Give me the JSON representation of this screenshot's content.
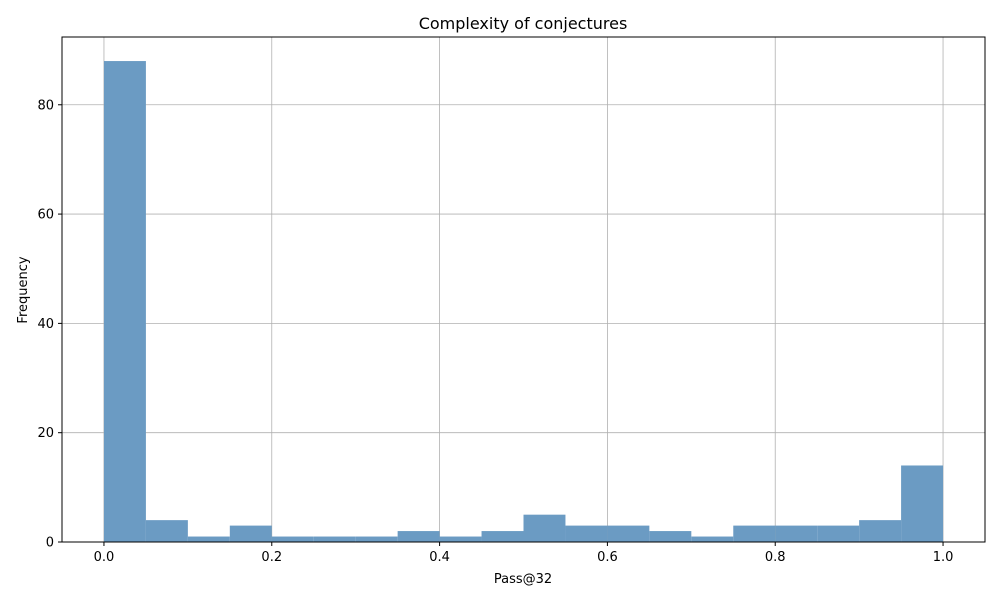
{
  "chart_data": {
    "type": "bar",
    "title": "Complexity of conjectures",
    "xlabel": "Pass@32",
    "ylabel": "Frequency",
    "xlim": [
      -0.05,
      1.05
    ],
    "ylim": [
      0,
      92.4
    ],
    "grid": true,
    "bar_color": "#6b9bc3",
    "bins": [
      {
        "x0": 0.0,
        "x1": 0.05,
        "count": 88
      },
      {
        "x0": 0.05,
        "x1": 0.1,
        "count": 4
      },
      {
        "x0": 0.1,
        "x1": 0.15,
        "count": 1
      },
      {
        "x0": 0.15,
        "x1": 0.2,
        "count": 3
      },
      {
        "x0": 0.2,
        "x1": 0.25,
        "count": 1
      },
      {
        "x0": 0.25,
        "x1": 0.3,
        "count": 1
      },
      {
        "x0": 0.3,
        "x1": 0.35,
        "count": 1
      },
      {
        "x0": 0.35,
        "x1": 0.4,
        "count": 2
      },
      {
        "x0": 0.4,
        "x1": 0.45,
        "count": 1
      },
      {
        "x0": 0.45,
        "x1": 0.5,
        "count": 2
      },
      {
        "x0": 0.5,
        "x1": 0.55,
        "count": 5
      },
      {
        "x0": 0.55,
        "x1": 0.6,
        "count": 3
      },
      {
        "x0": 0.6,
        "x1": 0.65,
        "count": 3
      },
      {
        "x0": 0.65,
        "x1": 0.7,
        "count": 2
      },
      {
        "x0": 0.7,
        "x1": 0.75,
        "count": 1
      },
      {
        "x0": 0.75,
        "x1": 0.8,
        "count": 3
      },
      {
        "x0": 0.8,
        "x1": 0.85,
        "count": 3
      },
      {
        "x0": 0.85,
        "x1": 0.9,
        "count": 3
      },
      {
        "x0": 0.9,
        "x1": 0.95,
        "count": 4
      },
      {
        "x0": 0.95,
        "x1": 1.0,
        "count": 14
      }
    ],
    "xticks": [
      {
        "value": 0.0,
        "label": "0.0"
      },
      {
        "value": 0.2,
        "label": "0.2"
      },
      {
        "value": 0.4,
        "label": "0.4"
      },
      {
        "value": 0.6,
        "label": "0.6"
      },
      {
        "value": 0.8,
        "label": "0.8"
      },
      {
        "value": 1.0,
        "label": "1.0"
      }
    ],
    "yticks": [
      {
        "value": 0,
        "label": "0"
      },
      {
        "value": 20,
        "label": "20"
      },
      {
        "value": 40,
        "label": "40"
      },
      {
        "value": 60,
        "label": "60"
      },
      {
        "value": 80,
        "label": "80"
      }
    ]
  }
}
